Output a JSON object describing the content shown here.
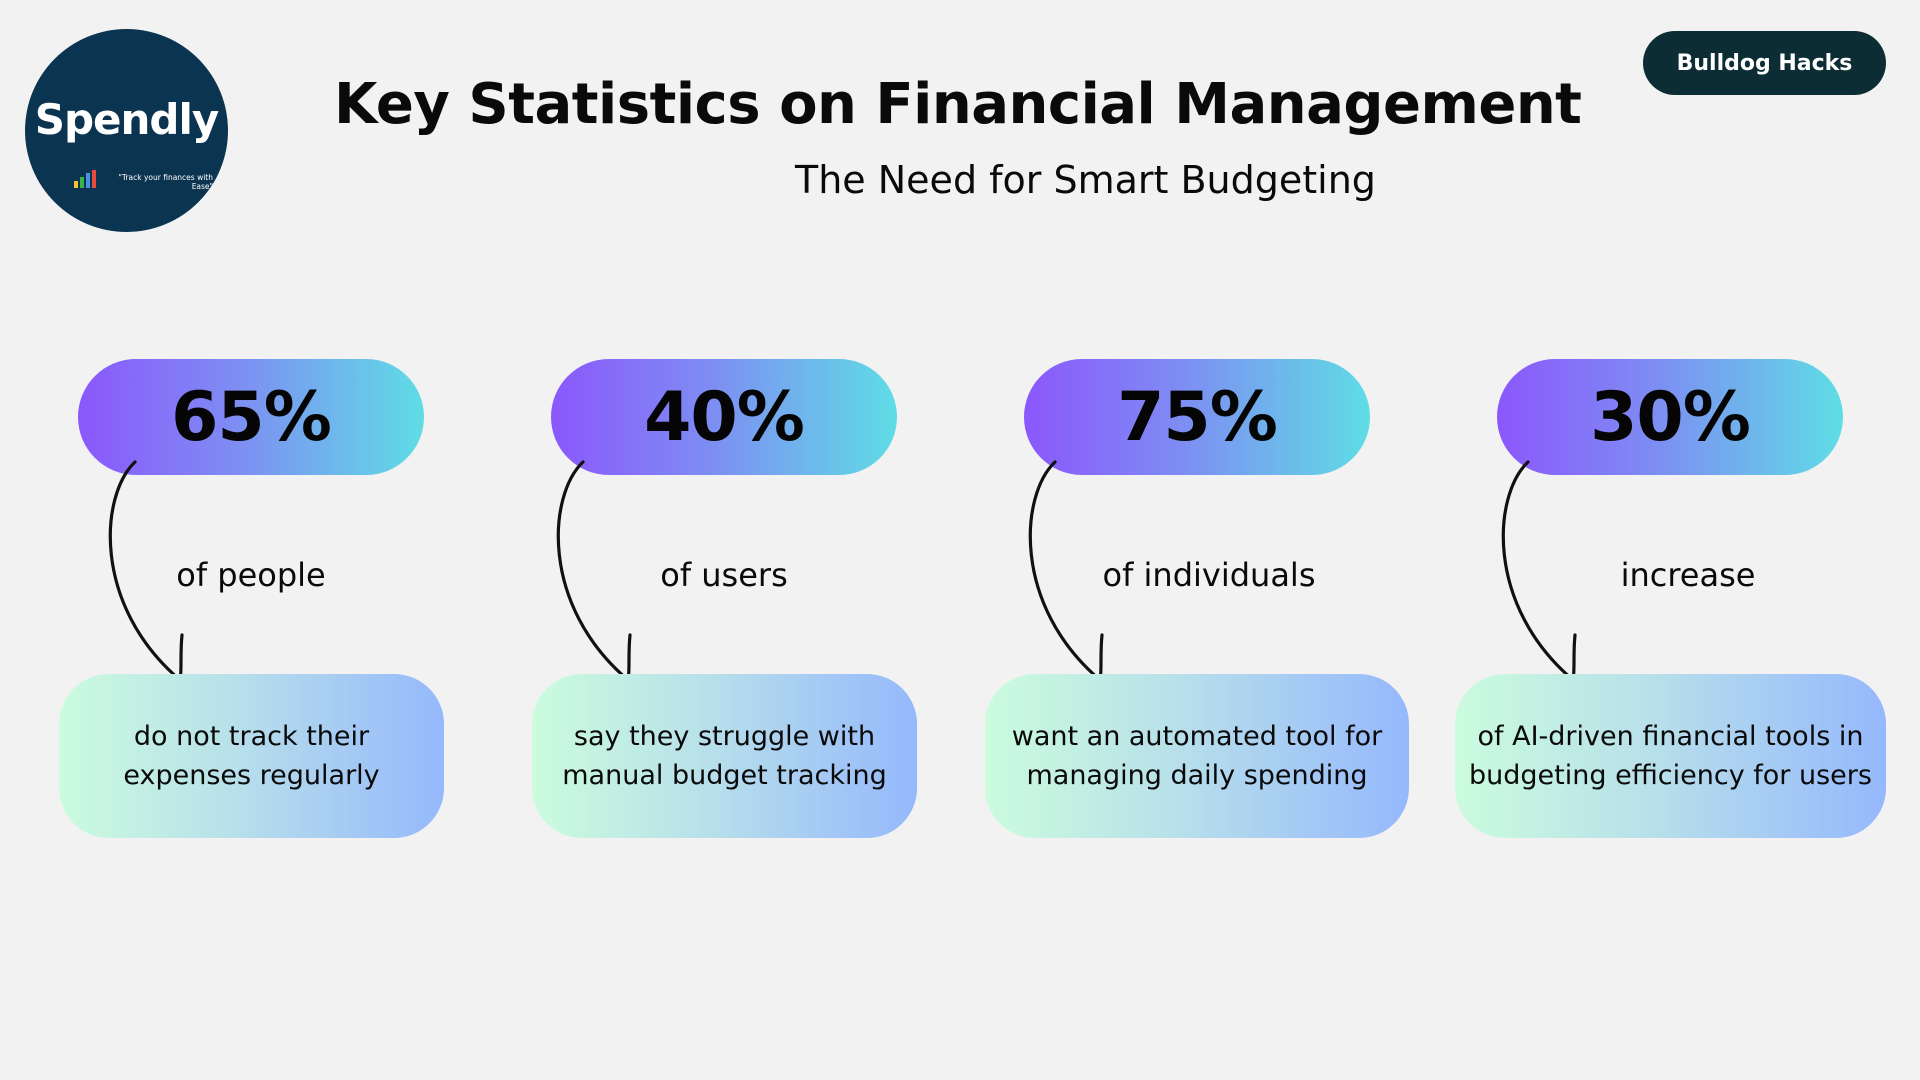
{
  "logo": {
    "name": "Spendly",
    "tagline": "\"Track your finances with Ease\""
  },
  "badge": "Bulldog Hacks",
  "title": "Key Statistics on Financial Management",
  "subtitle": "The Need for Smart Budgeting",
  "stats": [
    {
      "value": "65%",
      "label": "of people",
      "description": "do not track their expenses regularly"
    },
    {
      "value": "40%",
      "label": "of users",
      "description": "say they struggle with manual budget tracking"
    },
    {
      "value": "75%",
      "label": "of individuals",
      "description": "want an automated tool for managing daily spending"
    },
    {
      "value": "30%",
      "label": "increase",
      "description": "of AI-driven financial tools in budgeting efficiency for users"
    }
  ],
  "colors": {
    "background": "#f2f2f2",
    "logo_bg": "#0b3451",
    "badge_bg": "#0d2d34",
    "pill_gradient": [
      "#8b57fc",
      "#5fdde5"
    ],
    "card_gradient": [
      "#cbfcdd",
      "#95b8fc"
    ]
  },
  "icons": [
    "curved-arrow-icon"
  ]
}
